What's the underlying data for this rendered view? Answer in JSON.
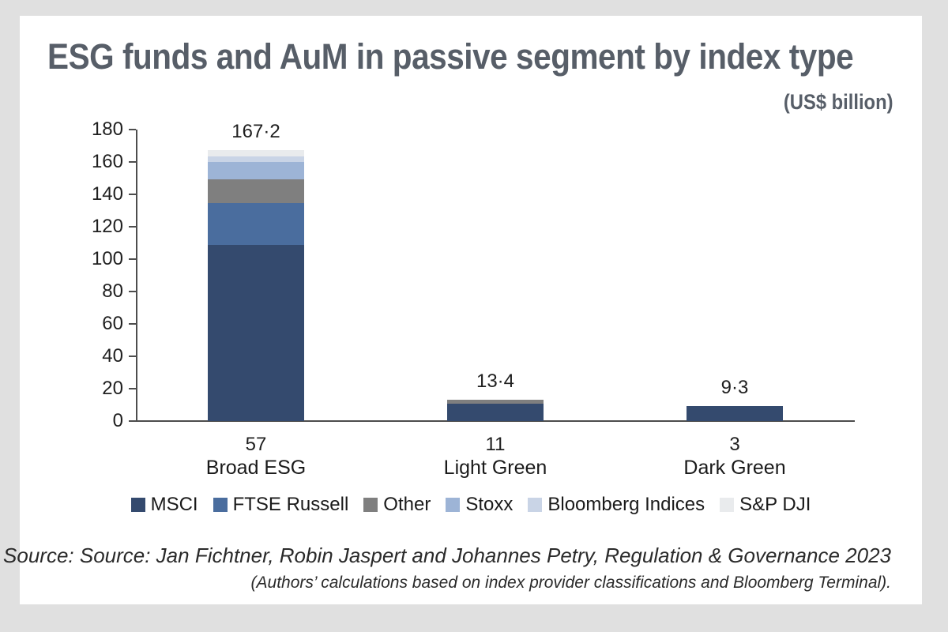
{
  "page": {
    "title": "ESG funds and AuM in passive segment by index type",
    "subtitle": "(US$ billion)",
    "source_line1": "Source: Source: Jan Fichtner, Robin Jaspert and Johannes Petry, Regulation & Governance 2023",
    "source_line2": "(Authors’ calculations based on index provider classifications and Bloomberg Terminal)."
  },
  "colors": {
    "page_background": "#e0e0e0",
    "card_background": "#ffffff",
    "title_text": "#575e68",
    "axis_line": "#4d4d4d",
    "label_text": "#1f1f1f"
  },
  "chart_data": {
    "type": "bar",
    "stacked": true,
    "title": "ESG funds and AuM in passive segment by index type",
    "unit_label": "(US$ billion)",
    "categories": [
      "Broad ESG",
      "Light Green",
      "Dark Green"
    ],
    "category_fund_counts": [
      "57",
      "11",
      "3"
    ],
    "totals": [
      167.2,
      13.4,
      9.3
    ],
    "totals_display": [
      "167·2",
      "13·4",
      "9·3"
    ],
    "ylim": [
      0,
      180
    ],
    "ytick_step": 20,
    "grid": false,
    "legend_position": "bottom",
    "series": [
      {
        "name": "MSCI",
        "color": "#344a6e",
        "values": [
          109.0,
          10.8,
          9.3
        ]
      },
      {
        "name": "FTSE Russell",
        "color": "#4a6d9e",
        "values": [
          25.8,
          0,
          0
        ]
      },
      {
        "name": "Other",
        "color": "#7f7f7f",
        "values": [
          14.6,
          2.6,
          0
        ]
      },
      {
        "name": "Stoxx",
        "color": "#9db4d6",
        "values": [
          10.6,
          0,
          0
        ]
      },
      {
        "name": "Bloomberg Indices",
        "color": "#c9d4e6",
        "values": [
          3.5,
          0,
          0
        ]
      },
      {
        "name": "S&P DJI",
        "color": "#e9ebed",
        "values": [
          3.7,
          0,
          0
        ]
      }
    ]
  }
}
